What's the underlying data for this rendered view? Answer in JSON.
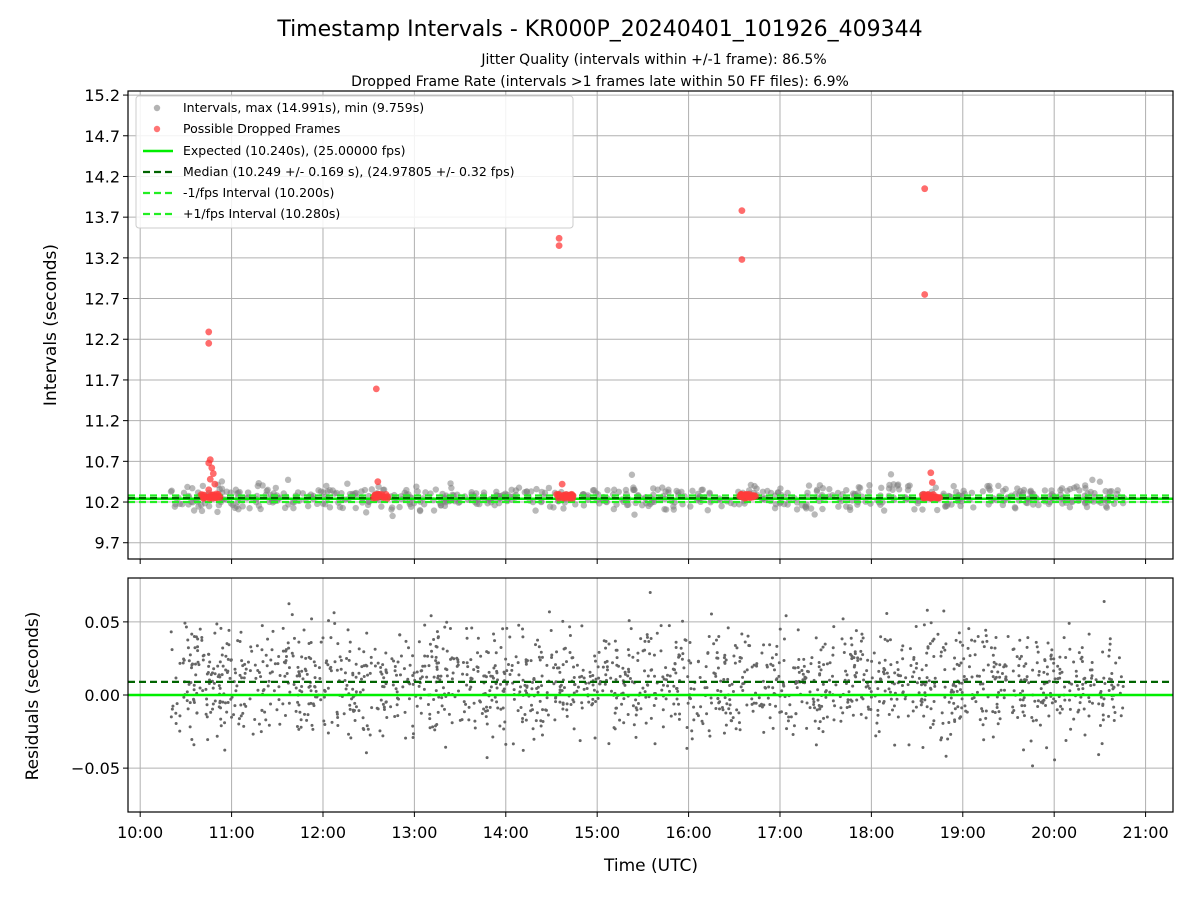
{
  "chart_data": [
    {
      "type": "scatter",
      "title": "Timestamp Intervals - KR000P_20240401_101926_409344",
      "subtitle_1": "Jitter Quality (intervals within +/-1 frame): 86.5%",
      "subtitle_2": "Dropped Frame Rate (intervals >1 frames late within 50 FF files): 6.9%",
      "ylabel": "Intervals (seconds)",
      "ylim": [
        9.5,
        15.25
      ],
      "yticks": [
        "9.7",
        "10.2",
        "10.7",
        "11.2",
        "11.7",
        "12.2",
        "12.7",
        "13.2",
        "13.7",
        "14.2",
        "14.7",
        "15.2"
      ],
      "grid": true,
      "legend_position": "top-left",
      "legend": [
        "Intervals, max (14.991s), min (9.759s)",
        "Possible Dropped Frames",
        "Expected (10.240s), (25.00000 fps)",
        "Median (10.249 +/- 0.169 s), (24.97805 +/- 0.32 fps)",
        "-1/fps Interval (10.200s)",
        "+1/fps Interval (10.280s)"
      ],
      "reference_lines": {
        "expected": 10.24,
        "median": 10.249,
        "minus_one_frame": 10.2,
        "plus_one_frame": 10.28
      },
      "dropped_frames": [
        {
          "x": "10:45",
          "y": 12.29
        },
        {
          "x": "10:45",
          "y": 12.15
        },
        {
          "x": "10:46",
          "y": 10.72
        },
        {
          "x": "10:45",
          "y": 10.68
        },
        {
          "x": "10:47",
          "y": 10.62
        },
        {
          "x": "10:48",
          "y": 10.55
        },
        {
          "x": "10:46",
          "y": 10.48
        },
        {
          "x": "10:49",
          "y": 10.42
        },
        {
          "x": "10:45",
          "y": 10.35
        },
        {
          "x": "10:50",
          "y": 10.3
        },
        {
          "x": "12:35",
          "y": 11.59
        },
        {
          "x": "12:36",
          "y": 10.45
        },
        {
          "x": "14:35",
          "y": 13.44
        },
        {
          "x": "14:35",
          "y": 13.35
        },
        {
          "x": "14:37",
          "y": 10.42
        },
        {
          "x": "16:35",
          "y": 13.78
        },
        {
          "x": "16:35",
          "y": 13.18
        },
        {
          "x": "18:35",
          "y": 14.05
        },
        {
          "x": "18:35",
          "y": 12.75
        },
        {
          "x": "18:39",
          "y": 10.56
        },
        {
          "x": "18:40",
          "y": 10.44
        }
      ],
      "dropped_clusters": [
        "10:40-10:53",
        "12:33-12:43",
        "14:33-14:45",
        "16:33-16:45",
        "18:33-18:45"
      ],
      "intervals_summary": {
        "median": 10.249,
        "std": 0.169,
        "min": 9.759,
        "max": 14.991,
        "x_range": [
          "10:20",
          "20:46"
        ]
      }
    },
    {
      "type": "scatter",
      "ylabel": "Residuals (seconds)",
      "xlabel": "Time (UTC)",
      "ylim": [
        -0.08,
        0.08
      ],
      "yticks": [
        "−0.05",
        "0.00",
        "0.05"
      ],
      "xticks": [
        "10:00",
        "11:00",
        "12:00",
        "13:00",
        "14:00",
        "15:00",
        "16:00",
        "17:00",
        "18:00",
        "19:00",
        "20:00",
        "21:00"
      ],
      "xlim": [
        "09:52",
        "21:18"
      ],
      "grid": true,
      "reference_lines": {
        "zero": 0.0,
        "median_offset": 0.009
      },
      "residuals_summary": {
        "spread": 0.02,
        "x_range": [
          "10:20",
          "20:46"
        ]
      }
    }
  ],
  "colors": {
    "interval_points": "#808080",
    "dropped_points": "#ff3b3b",
    "expected_line": "#00ee00",
    "median_line": "#006400",
    "frame_bound_lines": "#22ee22",
    "residual_points": "#666666",
    "grid": "#b0b0b0"
  }
}
